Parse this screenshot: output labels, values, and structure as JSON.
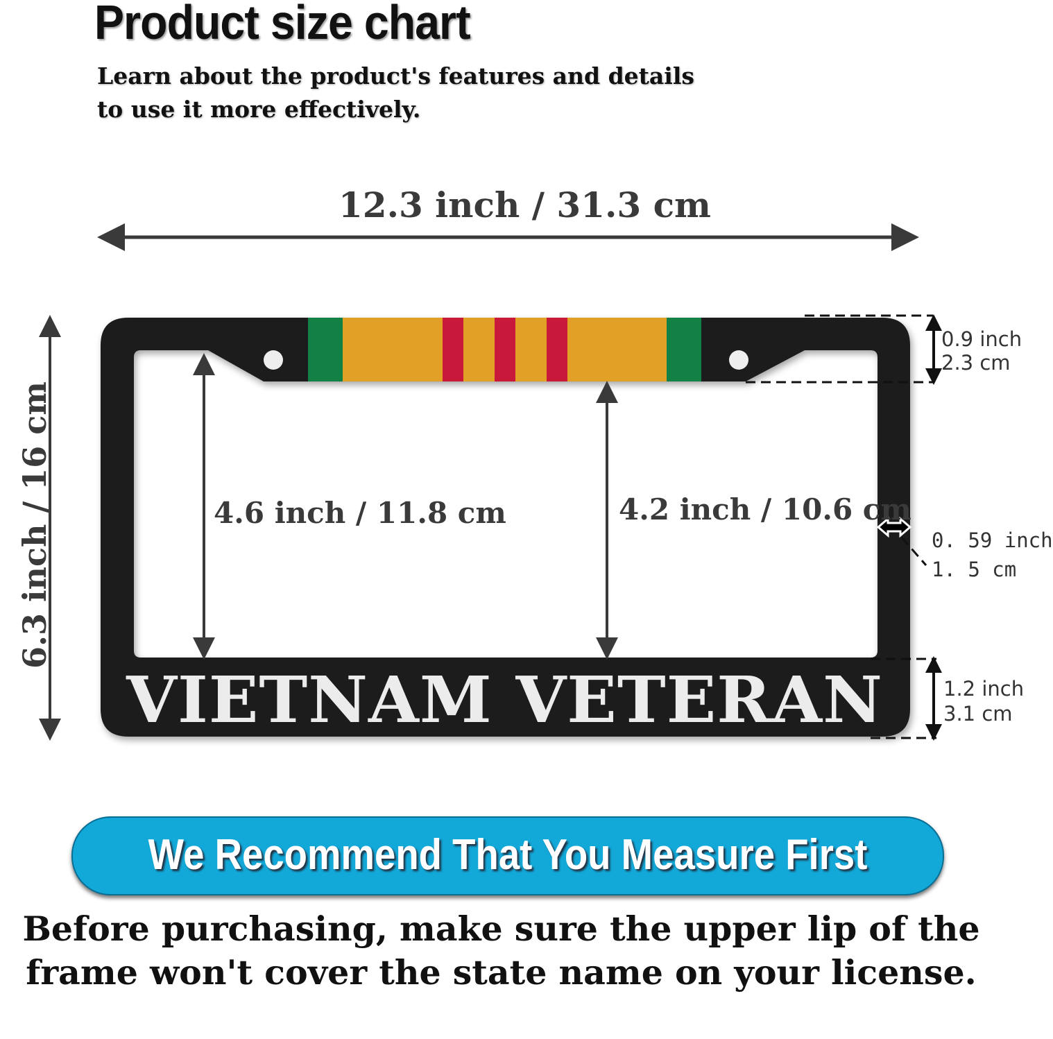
{
  "header": {
    "title": "Product size chart",
    "subtitle_line1": "Learn about the product's features and details",
    "subtitle_line2": "to use it more effectively."
  },
  "dimensions": {
    "width": "12.3 inch / 31.3 cm",
    "height": "6.3 inch / 16 cm",
    "inner_left_height": "4.6 inch / 11.8 cm",
    "inner_center_height": "4.2 inch / 10.6 cm",
    "top_border_inch": "0.9 inch",
    "top_border_cm": "2.3 cm",
    "side_border_inch": "0. 59  inch",
    "side_border_cm": "1. 5  cm",
    "bottom_border_inch": "1.2 inch",
    "bottom_border_cm": "3.1 cm"
  },
  "product": {
    "frame_text": "VIETNAM VETERAN",
    "frame_color": "#1f1f1f",
    "ribbon_colors": {
      "green": "#138046",
      "gold": "#e0a126",
      "red": "#c8193a"
    }
  },
  "banner": {
    "text": "We Recommend That You Measure First",
    "color": "#12a8d8"
  },
  "note": "Before purchasing, make sure the upper lip of the frame won't cover the state name on your license."
}
